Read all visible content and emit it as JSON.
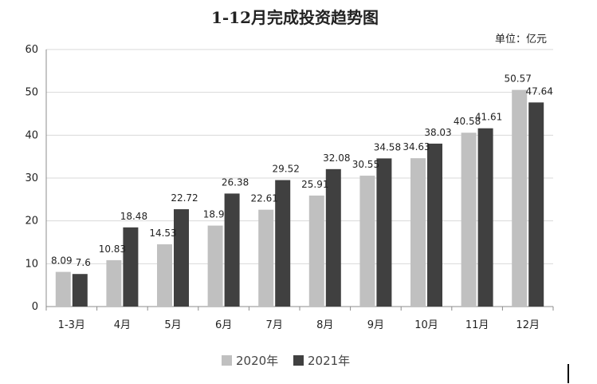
{
  "chart_data": {
    "type": "bar",
    "title": "1-12月完成投资趋势图",
    "unit_label": "单位：亿元",
    "categories": [
      "1-3月",
      "4月",
      "5月",
      "6月",
      "7月",
      "8月",
      "9月",
      "10月",
      "11月",
      "12月"
    ],
    "series": [
      {
        "name": "2020年",
        "color": "#c0c0c0",
        "values": [
          8.09,
          10.83,
          14.53,
          18.9,
          22.61,
          25.91,
          30.55,
          34.63,
          40.58,
          50.57
        ],
        "labels": [
          "8.09",
          "10.83",
          "14.53",
          "18.9",
          "22.61",
          "25.91",
          "30.55",
          "34.63",
          "40.58",
          "50.57"
        ]
      },
      {
        "name": "2021年",
        "color": "#404040",
        "values": [
          7.6,
          18.48,
          22.72,
          26.38,
          29.52,
          32.08,
          34.58,
          38.03,
          41.61,
          47.64
        ],
        "labels": [
          "7.6",
          "18.48",
          "22.72",
          "26.38",
          "29.52",
          "32.08",
          "34.58",
          "38.03",
          "41.61",
          "47.64"
        ]
      }
    ],
    "ylim": [
      0,
      60
    ],
    "yticks": [
      "0",
      "10",
      "20",
      "30",
      "40",
      "50",
      "60"
    ],
    "grid": true,
    "legend_position": "bottom"
  }
}
